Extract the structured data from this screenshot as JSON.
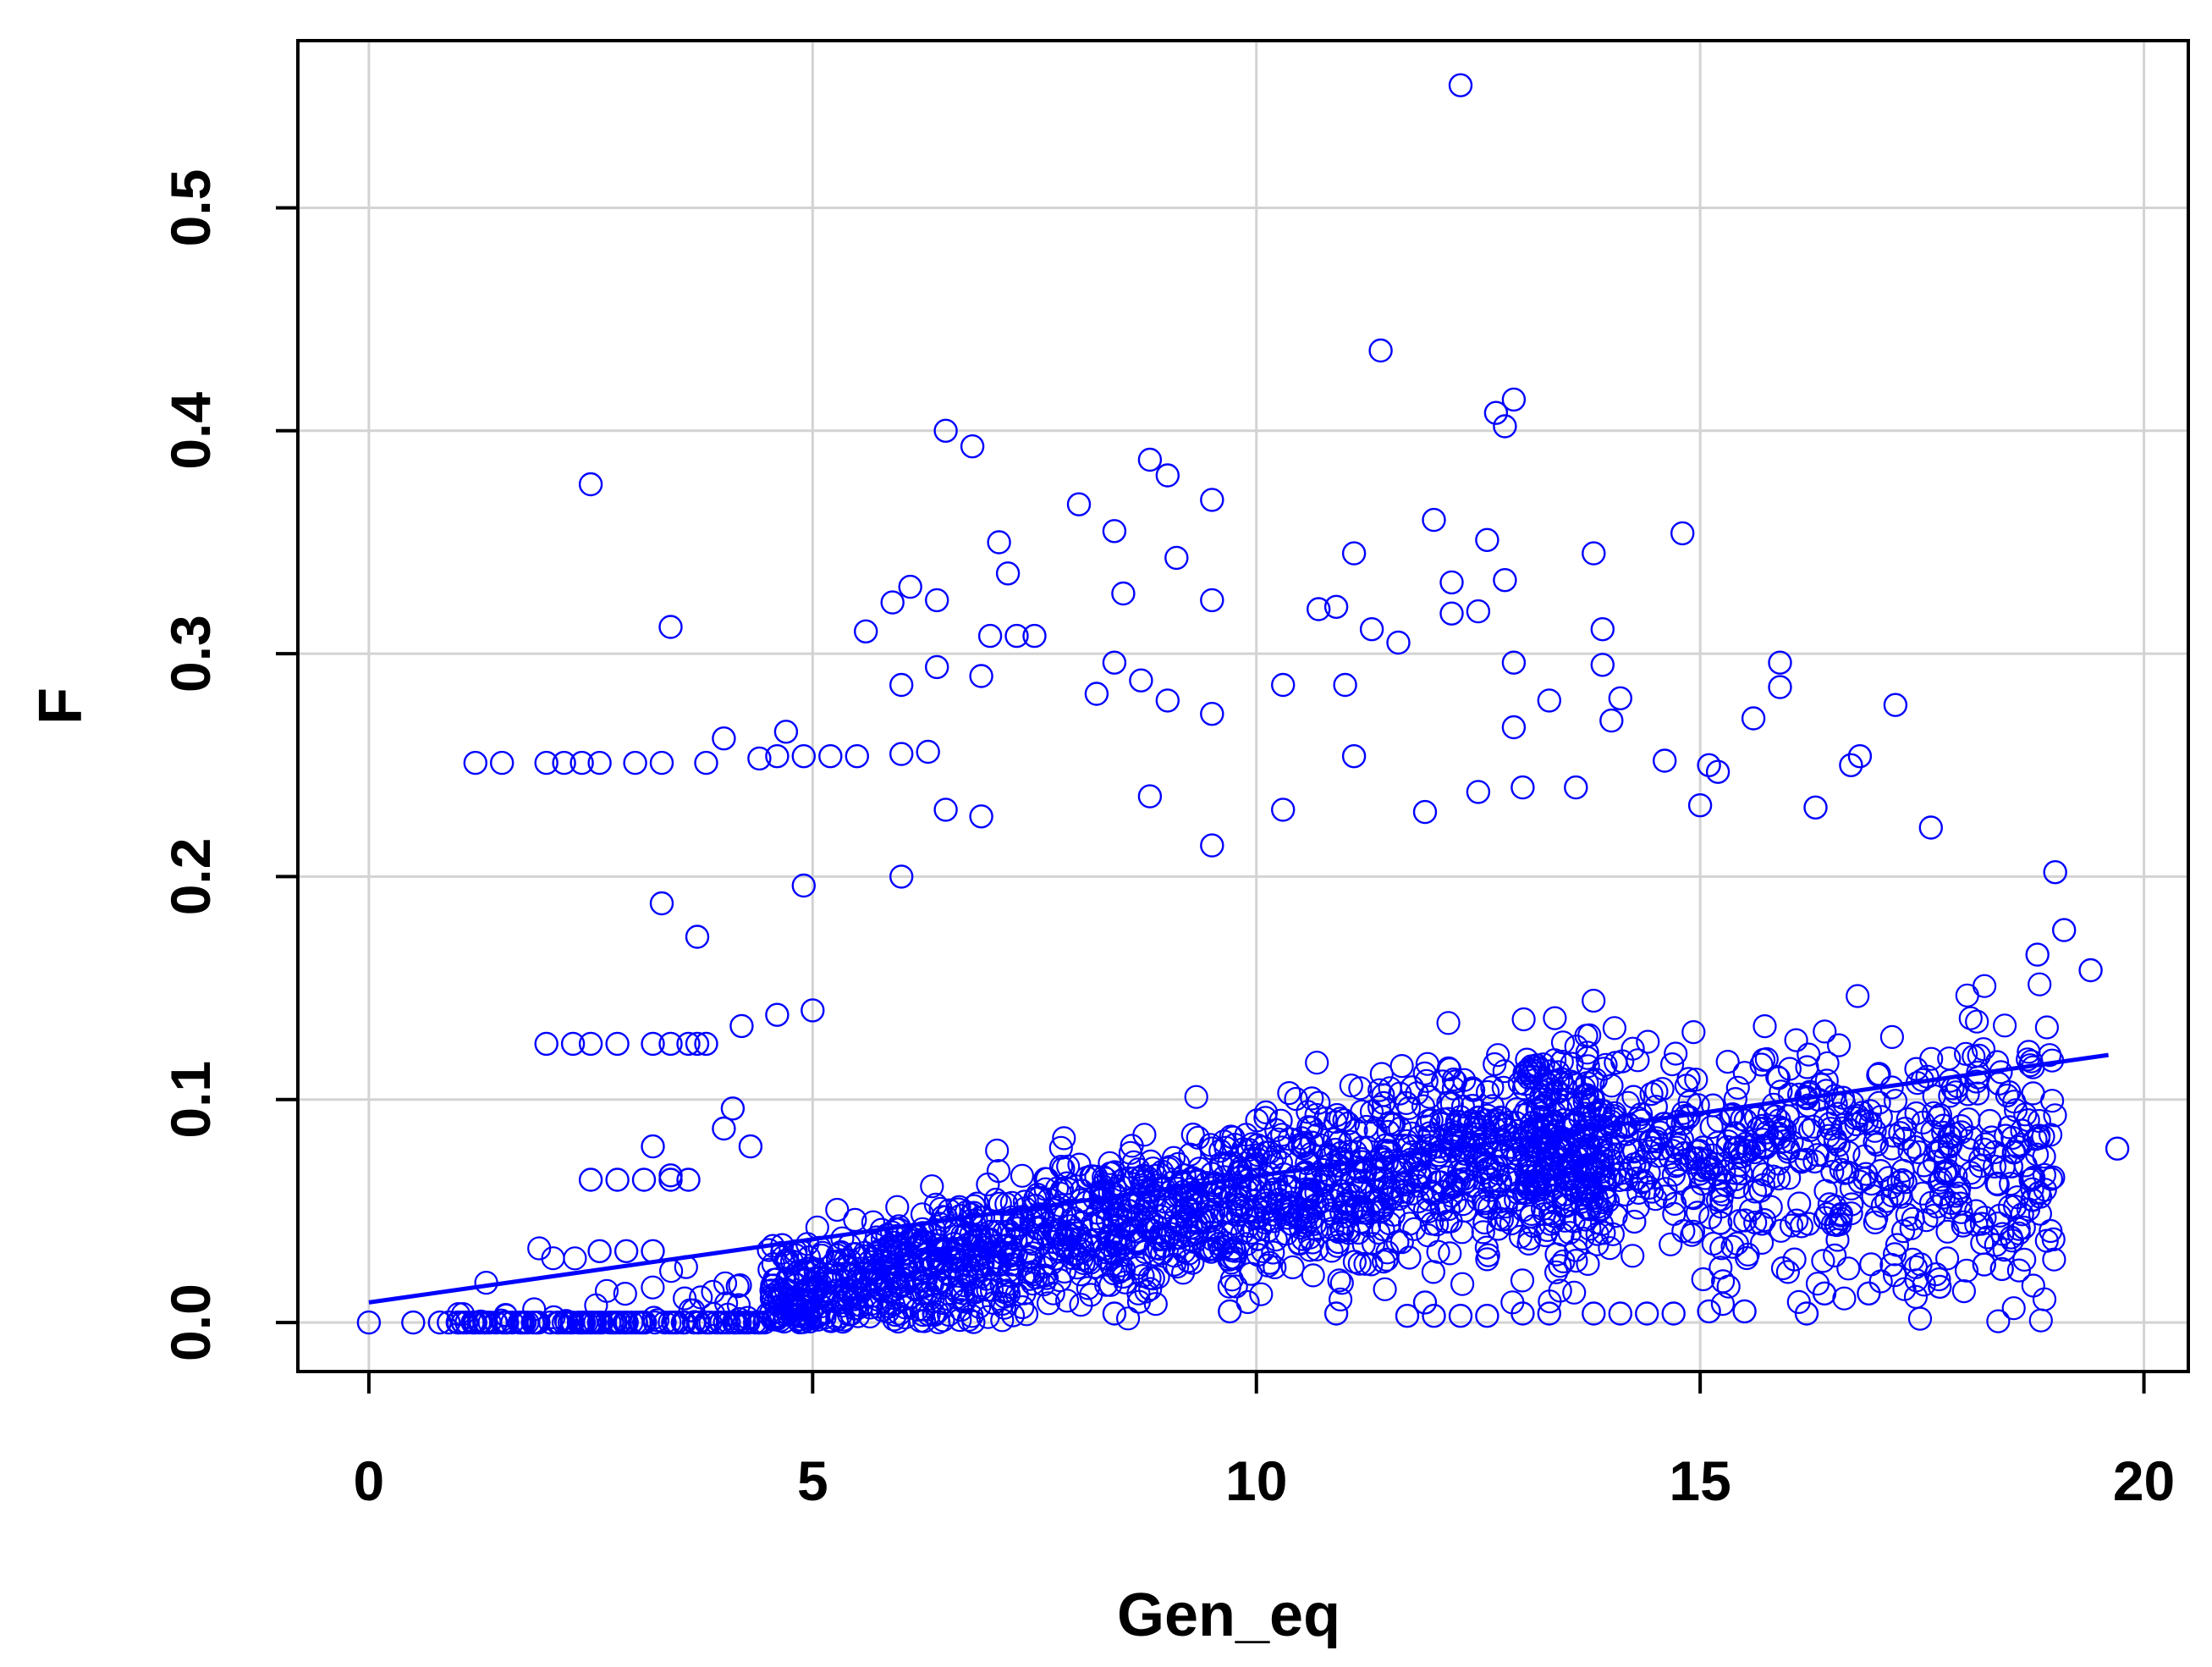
{
  "chart_data": {
    "type": "scatter",
    "title": "",
    "xlabel": "Gen_eq",
    "ylabel": "F",
    "xlim": [
      -0.8,
      20.5
    ],
    "ylim": [
      -0.022,
      0.575
    ],
    "x_ticks": [
      0,
      5,
      10,
      15,
      20
    ],
    "x_tick_labels": [
      "0",
      "5",
      "10",
      "15",
      "20"
    ],
    "y_ticks": [
      0.0,
      0.1,
      0.2,
      0.3,
      0.4,
      0.5
    ],
    "y_tick_labels": [
      "0.0",
      "0.1",
      "0.2",
      "0.3",
      "0.4",
      "0.5"
    ],
    "grid": true,
    "marker": "open-circle",
    "series": [
      {
        "color": "#0000ff",
        "points": [
          [
            12.3,
            0.555
          ],
          [
            11.4,
            0.436
          ],
          [
            12.9,
            0.414
          ],
          [
            12.7,
            0.408
          ],
          [
            12.8,
            0.402
          ],
          [
            6.5,
            0.4
          ],
          [
            6.8,
            0.393
          ],
          [
            2.5,
            0.376
          ],
          [
            8.8,
            0.387
          ],
          [
            9.0,
            0.38
          ],
          [
            9.5,
            0.369
          ],
          [
            8.0,
            0.367
          ],
          [
            12.0,
            0.36
          ],
          [
            12.6,
            0.351
          ],
          [
            14.8,
            0.354
          ],
          [
            7.1,
            0.35
          ],
          [
            8.4,
            0.355
          ],
          [
            11.1,
            0.345
          ],
          [
            13.8,
            0.345
          ],
          [
            9.1,
            0.343
          ],
          [
            7.2,
            0.336
          ],
          [
            6.1,
            0.33
          ],
          [
            12.2,
            0.332
          ],
          [
            12.8,
            0.333
          ],
          [
            8.5,
            0.327
          ],
          [
            9.5,
            0.324
          ],
          [
            6.4,
            0.324
          ],
          [
            5.9,
            0.323
          ],
          [
            10.7,
            0.32
          ],
          [
            10.9,
            0.321
          ],
          [
            12.2,
            0.318
          ],
          [
            12.5,
            0.319
          ],
          [
            3.4,
            0.312
          ],
          [
            13.9,
            0.311
          ],
          [
            11.3,
            0.311
          ],
          [
            5.6,
            0.31
          ],
          [
            7.0,
            0.308
          ],
          [
            7.3,
            0.308
          ],
          [
            7.5,
            0.308
          ],
          [
            11.6,
            0.305
          ],
          [
            15.9,
            0.296
          ],
          [
            12.9,
            0.296
          ],
          [
            8.4,
            0.296
          ],
          [
            6.4,
            0.294
          ],
          [
            13.9,
            0.295
          ],
          [
            15.9,
            0.285
          ],
          [
            6.9,
            0.29
          ],
          [
            8.7,
            0.288
          ],
          [
            6.0,
            0.286
          ],
          [
            11.0,
            0.286
          ],
          [
            14.1,
            0.28
          ],
          [
            17.2,
            0.277
          ],
          [
            9.0,
            0.279
          ],
          [
            13.3,
            0.279
          ],
          [
            8.2,
            0.282
          ],
          [
            10.3,
            0.286
          ],
          [
            15.6,
            0.271
          ],
          [
            9.5,
            0.273
          ],
          [
            14.0,
            0.27
          ],
          [
            12.9,
            0.267
          ],
          [
            1.2,
            0.251
          ],
          [
            1.5,
            0.251
          ],
          [
            2.0,
            0.251
          ],
          [
            2.2,
            0.251
          ],
          [
            2.4,
            0.251
          ],
          [
            2.6,
            0.251
          ],
          [
            3.0,
            0.251
          ],
          [
            3.3,
            0.251
          ],
          [
            3.8,
            0.251
          ],
          [
            4.4,
            0.253
          ],
          [
            4.6,
            0.254
          ],
          [
            4.9,
            0.254
          ],
          [
            5.2,
            0.254
          ],
          [
            5.5,
            0.254
          ],
          [
            4.0,
            0.262
          ],
          [
            4.7,
            0.265
          ],
          [
            6.0,
            0.255
          ],
          [
            6.3,
            0.256
          ],
          [
            11.1,
            0.254
          ],
          [
            14.6,
            0.252
          ],
          [
            15.1,
            0.25
          ],
          [
            16.8,
            0.254
          ],
          [
            16.7,
            0.25
          ],
          [
            15.2,
            0.247
          ],
          [
            15.0,
            0.232
          ],
          [
            13.6,
            0.24
          ],
          [
            13.0,
            0.24
          ],
          [
            12.5,
            0.238
          ],
          [
            10.3,
            0.23
          ],
          [
            8.8,
            0.236
          ],
          [
            6.5,
            0.23
          ],
          [
            6.9,
            0.227
          ],
          [
            11.9,
            0.229
          ],
          [
            16.3,
            0.231
          ],
          [
            17.6,
            0.222
          ],
          [
            3.3,
            0.188
          ],
          [
            3.7,
            0.173
          ],
          [
            4.9,
            0.196
          ],
          [
            6.0,
            0.2
          ],
          [
            19.0,
            0.202
          ],
          [
            19.1,
            0.176
          ],
          [
            19.4,
            0.158
          ],
          [
            19.7,
            0.078
          ],
          [
            18.8,
            0.165
          ],
          [
            9.5,
            0.214
          ],
          [
            2.0,
            0.125
          ],
          [
            2.3,
            0.125
          ],
          [
            2.5,
            0.125
          ],
          [
            2.8,
            0.125
          ],
          [
            3.2,
            0.125
          ],
          [
            3.4,
            0.125
          ],
          [
            3.6,
            0.125
          ],
          [
            3.7,
            0.125
          ],
          [
            3.8,
            0.125
          ],
          [
            4.2,
            0.133
          ],
          [
            4.6,
            0.138
          ],
          [
            5.0,
            0.14
          ],
          [
            2.5,
            0.064
          ],
          [
            2.8,
            0.064
          ],
          [
            3.1,
            0.064
          ],
          [
            3.4,
            0.064
          ],
          [
            3.6,
            0.064
          ],
          [
            2.6,
            0.032
          ],
          [
            2.9,
            0.032
          ],
          [
            3.2,
            0.032
          ],
          [
            3.2,
            0.079
          ],
          [
            3.4,
            0.066
          ],
          [
            4.0,
            0.087
          ],
          [
            4.1,
            0.096
          ],
          [
            4.3,
            0.079
          ],
          [
            0.0,
            0.0
          ],
          [
            0.5,
            0.0
          ],
          [
            0.8,
            0.0
          ],
          [
            0.9,
            0.0
          ],
          [
            1.0,
            0.0
          ],
          [
            1.1,
            0.0
          ],
          [
            1.2,
            0.0
          ],
          [
            1.3,
            0.0
          ],
          [
            12.0,
            0.003
          ],
          [
            12.3,
            0.003
          ],
          [
            12.6,
            0.003
          ],
          [
            13.0,
            0.004
          ],
          [
            13.3,
            0.004
          ],
          [
            13.8,
            0.004
          ],
          [
            14.1,
            0.004
          ],
          [
            14.4,
            0.004
          ],
          [
            14.7,
            0.004
          ],
          [
            15.1,
            0.005
          ],
          [
            15.5,
            0.005
          ],
          [
            16.2,
            0.004
          ],
          [
            11.7,
            0.003
          ],
          [
            11.9,
            0.009
          ],
          [
            10.9,
            0.004
          ],
          [
            9.7,
            0.005
          ],
          [
            8.4,
            0.004
          ],
          [
            17.7,
            0.016
          ],
          [
            18.2,
            0.026
          ],
          [
            18.4,
            0.024
          ],
          [
            16.4,
            0.013
          ],
          [
            16.9,
            0.013
          ]
        ]
      }
    ],
    "cloud_seed": 20614,
    "fit_line": {
      "color": "#0000ff",
      "x": [
        0.0,
        19.6
      ],
      "y": [
        0.009,
        0.12
      ]
    }
  }
}
